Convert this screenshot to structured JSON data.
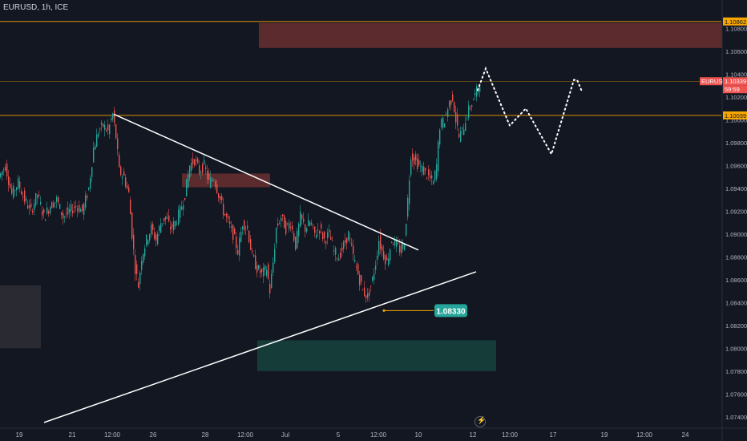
{
  "header": {
    "title": "EURUSD, 1h, ICE"
  },
  "colors": {
    "background": "#131722",
    "up": "#26a69a",
    "down": "#ef5350",
    "level_line": "#f7a600",
    "resistance_zone": "#5c2b2e",
    "support_zone": "#163c3a",
    "grey_box": "#2a2a33",
    "trendline": "#ffffff",
    "axis_text": "#b2b5be"
  },
  "chart_data": {
    "type": "candlestick",
    "title": "EURUSD, 1h, ICE",
    "y_axis": {
      "ylim": [
        1.073,
        1.1105
      ],
      "tick_labels": [
        "1.07400",
        "1.07600",
        "1.07800",
        "1.08000",
        "1.08200",
        "1.08400",
        "1.08600",
        "1.08800",
        "1.09000",
        "1.09200",
        "1.09400",
        "1.09600",
        "1.09800",
        "1.10000",
        "1.10200",
        "1.10400",
        "1.10600",
        "1.10800"
      ],
      "ticks": [
        1.074,
        1.076,
        1.078,
        1.08,
        1.082,
        1.084,
        1.086,
        1.088,
        1.09,
        1.092,
        1.094,
        1.096,
        1.098,
        1.1,
        1.102,
        1.104,
        1.106,
        1.108
      ]
    },
    "x_axis": {
      "tick_labels": [
        "19",
        "21",
        "12:00",
        "26",
        "28",
        "12:00",
        "Jul",
        "5",
        "12:00",
        "10",
        "12",
        "12:00",
        "17",
        "19",
        "12:00",
        "24"
      ],
      "tick_positions_x": [
        24,
        90,
        140,
        191,
        256,
        306,
        356,
        422,
        472,
        522,
        590,
        636,
        690,
        754,
        804,
        855
      ]
    },
    "price_labels": [
      {
        "label": "1.10862",
        "value": 1.10862,
        "style": "level"
      },
      {
        "label": "EURUSD",
        "value": 1.10339,
        "style": "symbol"
      },
      {
        "label": "1.10339",
        "value": 1.10339,
        "style": "price"
      },
      {
        "label": "59:59",
        "value": 1.10339,
        "style": "countdown"
      },
      {
        "label": "1.10039",
        "value": 1.10039,
        "style": "level"
      }
    ],
    "horizontal_levels": [
      1.10862,
      1.10339,
      1.10039
    ],
    "annotation": {
      "label": "1.08330",
      "value": 1.0833
    },
    "close_path": [
      [
        0,
        1.095
      ],
      [
        8,
        1.096
      ],
      [
        16,
        1.0935
      ],
      [
        24,
        1.0945
      ],
      [
        32,
        1.093
      ],
      [
        40,
        1.092
      ],
      [
        48,
        1.0935
      ],
      [
        56,
        1.0915
      ],
      [
        64,
        1.0925
      ],
      [
        72,
        1.093
      ],
      [
        80,
        1.0915
      ],
      [
        88,
        1.092
      ],
      [
        96,
        1.0925
      ],
      [
        104,
        1.092
      ],
      [
        112,
        1.094
      ],
      [
        118,
        1.0975
      ],
      [
        124,
        1.099
      ],
      [
        130,
        1.0995
      ],
      [
        136,
        1.099
      ],
      [
        142,
        1.1005
      ],
      [
        146,
        1.0985
      ],
      [
        150,
        1.0955
      ],
      [
        156,
        1.095
      ],
      [
        162,
        1.0935
      ],
      [
        166,
        1.09
      ],
      [
        170,
        1.087
      ],
      [
        174,
        1.0855
      ],
      [
        178,
        1.088
      ],
      [
        184,
        1.0895
      ],
      [
        190,
        1.0905
      ],
      [
        196,
        1.0895
      ],
      [
        202,
        1.091
      ],
      [
        208,
        1.0915
      ],
      [
        214,
        1.0905
      ],
      [
        220,
        1.091
      ],
      [
        226,
        1.092
      ],
      [
        232,
        1.0935
      ],
      [
        238,
        1.096
      ],
      [
        244,
        1.0965
      ],
      [
        250,
        1.0955
      ],
      [
        256,
        1.096
      ],
      [
        262,
        1.0945
      ],
      [
        268,
        1.095
      ],
      [
        274,
        1.0935
      ],
      [
        280,
        1.092
      ],
      [
        286,
        1.091
      ],
      [
        292,
        1.09
      ],
      [
        298,
        1.0885
      ],
      [
        304,
        1.091
      ],
      [
        310,
        1.0905
      ],
      [
        316,
        1.088
      ],
      [
        322,
        1.087
      ],
      [
        328,
        1.0865
      ],
      [
        334,
        1.087
      ],
      [
        338,
        1.085
      ],
      [
        342,
        1.0875
      ],
      [
        346,
        1.0905
      ],
      [
        352,
        1.0915
      ],
      [
        358,
        1.0905
      ],
      [
        364,
        1.091
      ],
      [
        370,
        1.089
      ],
      [
        376,
        1.0915
      ],
      [
        382,
        1.0905
      ],
      [
        388,
        1.091
      ],
      [
        394,
        1.09
      ],
      [
        400,
        1.0905
      ],
      [
        406,
        1.0895
      ],
      [
        412,
        1.09
      ],
      [
        418,
        1.0885
      ],
      [
        424,
        1.088
      ],
      [
        430,
        1.089
      ],
      [
        436,
        1.09
      ],
      [
        442,
        1.088
      ],
      [
        448,
        1.0865
      ],
      [
        454,
        1.085
      ],
      [
        460,
        1.0845
      ],
      [
        466,
        1.086
      ],
      [
        470,
        1.0875
      ],
      [
        474,
        1.0895
      ],
      [
        478,
        1.0885
      ],
      [
        484,
        1.0875
      ],
      [
        490,
        1.0895
      ],
      [
        496,
        1.089
      ],
      [
        502,
        1.0885
      ],
      [
        506,
        1.0895
      ],
      [
        510,
        1.093
      ],
      [
        514,
        1.097
      ],
      [
        518,
        1.0965
      ],
      [
        524,
        1.096
      ],
      [
        530,
        1.0955
      ],
      [
        536,
        1.095
      ],
      [
        542,
        1.0945
      ],
      [
        546,
        1.096
      ],
      [
        550,
        1.0995
      ],
      [
        556,
        1.1
      ],
      [
        562,
        1.1015
      ],
      [
        566,
        1.102
      ],
      [
        570,
        1.1
      ],
      [
        574,
        1.0985
      ],
      [
        578,
        1.099
      ],
      [
        584,
        1.1005
      ],
      [
        590,
        1.1015
      ],
      [
        596,
        1.1025
      ],
      [
        600,
        1.1034
      ]
    ],
    "forecast_path": [
      [
        596,
        1.1026
      ],
      [
        606,
        1.1045
      ],
      [
        636,
        1.0995
      ],
      [
        656,
        1.101
      ],
      [
        688,
        1.097
      ],
      [
        716,
        1.1035
      ],
      [
        720,
        1.1035
      ],
      [
        726,
        1.1025
      ]
    ],
    "trendlines": [
      {
        "name": "descending-trendline",
        "from": [
          142,
          1.1005
        ],
        "to": [
          522,
          1.0886
        ]
      },
      {
        "name": "ascending-trendline",
        "from": [
          55,
          1.0735
        ],
        "to": [
          594,
          1.0867
        ]
      }
    ],
    "zones": [
      {
        "name": "resistance-zone",
        "x0": 323,
        "x1": 901,
        "top": 1.1085,
        "bottom": 1.1063
      },
      {
        "name": "small-resistance-zone",
        "x0": 227,
        "x1": 337,
        "top": 1.0953,
        "bottom": 1.0941
      },
      {
        "name": "support-zone",
        "x0": 321,
        "x1": 619,
        "top": 1.0807,
        "bottom": 1.078
      },
      {
        "name": "grey-box",
        "x0": 0,
        "x1": 51,
        "top": 1.0855,
        "bottom": 1.08
      }
    ]
  }
}
